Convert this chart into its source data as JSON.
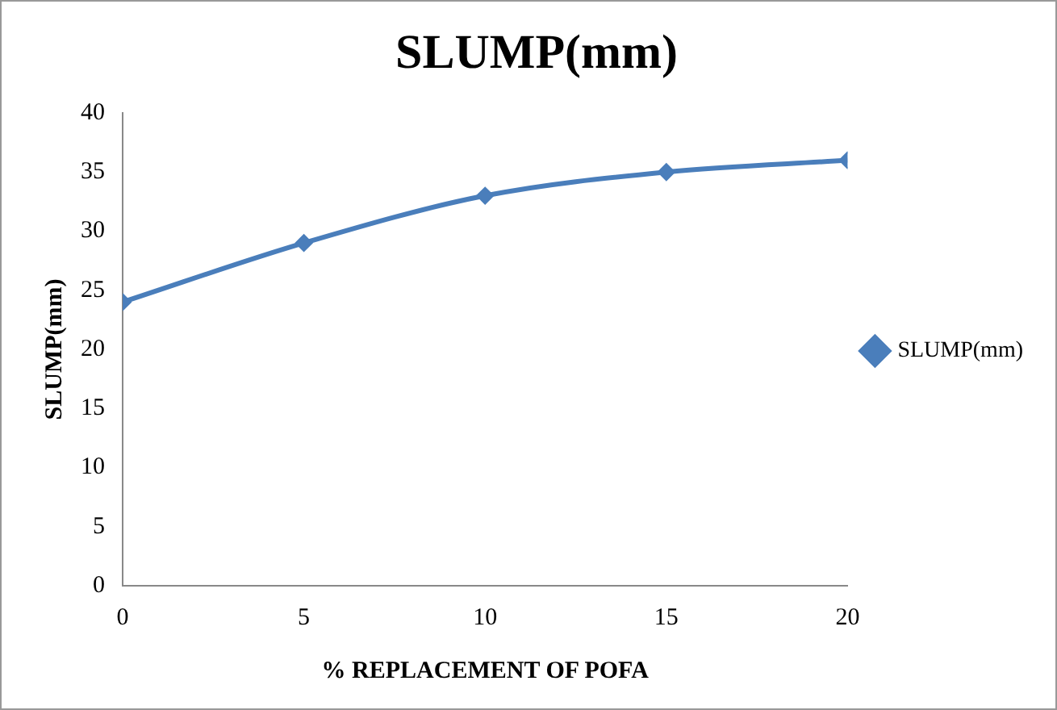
{
  "chart_data": {
    "type": "line",
    "title": "SLUMP(mm)",
    "xlabel": "% REPLACEMENT OF POFA",
    "ylabel": "SLUMP(mm)",
    "x": [
      0,
      5,
      10,
      15,
      20
    ],
    "series": [
      {
        "name": "SLUMP(mm)",
        "color": "#4a7ebb",
        "values": [
          24,
          29,
          33,
          35,
          36
        ]
      }
    ],
    "xlim": [
      0,
      20
    ],
    "xticks": [
      0,
      5,
      10,
      15,
      20
    ],
    "ylim": [
      0,
      40
    ],
    "yticks": [
      0,
      5,
      10,
      15,
      20,
      25,
      30,
      35,
      40
    ],
    "grid": false,
    "legend": "right",
    "marker": "diamond",
    "line_style": "solid"
  }
}
